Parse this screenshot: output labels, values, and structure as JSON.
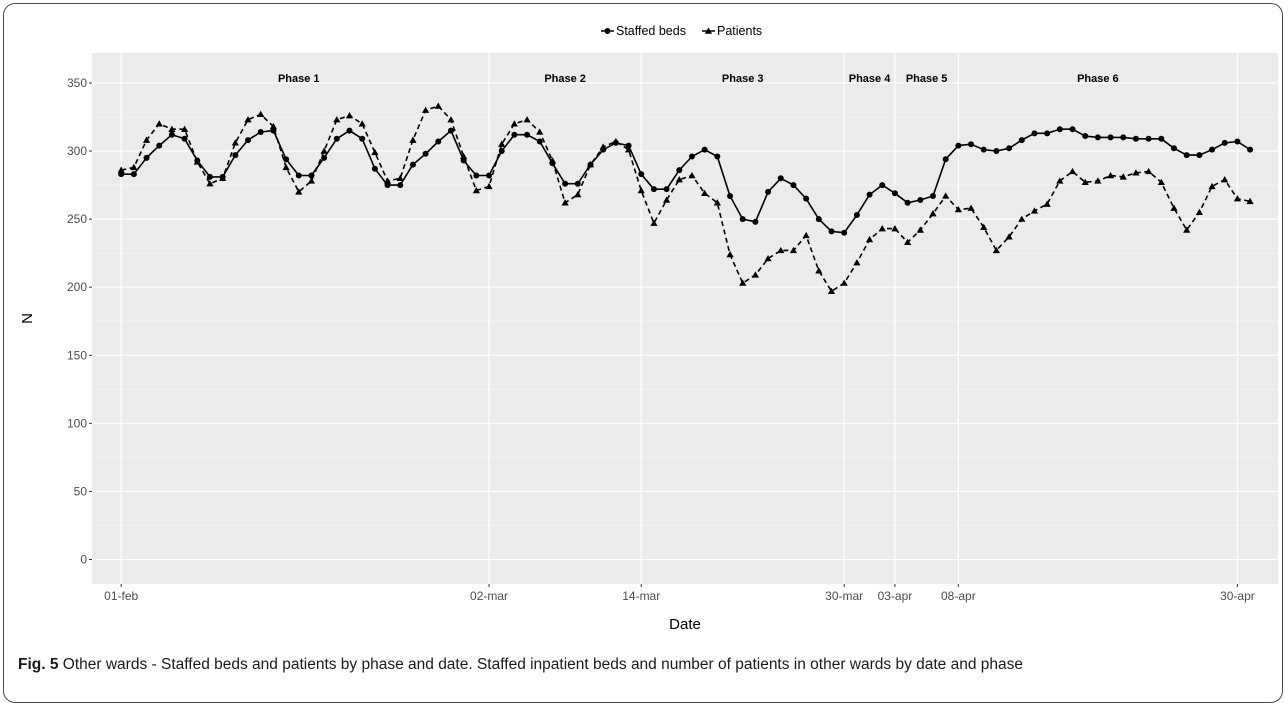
{
  "figure": {
    "caption_label": "Fig. 5",
    "caption_text": " Other wards - Staffed beds and patients by phase and date. Staffed inpatient beds and number of patients in other wards by date and phase"
  },
  "chart_data": {
    "type": "line",
    "title": "",
    "xlabel": "Date",
    "ylabel": "N",
    "ylim": [
      -18,
      372
    ],
    "xlim": [
      -2.3,
      91.2
    ],
    "grid": true,
    "legend_placement": "top",
    "x_ticks": [
      {
        "day": 0,
        "label": "01-feb"
      },
      {
        "day": 29,
        "label": "02-mar"
      },
      {
        "day": 41,
        "label": "14-mar"
      },
      {
        "day": 57,
        "label": "30-mar"
      },
      {
        "day": 61,
        "label": "03-apr"
      },
      {
        "day": 66,
        "label": "08-apr"
      },
      {
        "day": 88,
        "label": "30-apr"
      }
    ],
    "y_ticks": [
      0,
      50,
      100,
      150,
      200,
      250,
      300,
      350
    ],
    "phases": [
      {
        "label": "Phase 1",
        "center_day": 14
      },
      {
        "label": "Phase 2",
        "center_day": 35
      },
      {
        "label": "Phase 3",
        "center_day": 49
      },
      {
        "label": "Phase 4",
        "center_day": 59
      },
      {
        "label": "Phase 5",
        "center_day": 63.5
      },
      {
        "label": "Phase 6",
        "center_day": 77
      }
    ],
    "x_start_date": "01-feb",
    "series": [
      {
        "name": "Staffed beds",
        "marker": "circle",
        "dash": "solid",
        "color": "#000000",
        "values": [
          283,
          283,
          295,
          304,
          312,
          309,
          293,
          281,
          281,
          297,
          308,
          314,
          315,
          294,
          282,
          282,
          295,
          309,
          315,
          309,
          287,
          275,
          275,
          290,
          298,
          307,
          315,
          293,
          282,
          282,
          300,
          312,
          312,
          307,
          291,
          276,
          276,
          290,
          301,
          306,
          304,
          283,
          272,
          272,
          286,
          296,
          301,
          296,
          267,
          250,
          248,
          270,
          280,
          275,
          265,
          250,
          241,
          240,
          253,
          268,
          275,
          269,
          262,
          264,
          267,
          294,
          304,
          305,
          301,
          300,
          302,
          308,
          313,
          313,
          316,
          316,
          311,
          310,
          310,
          310,
          309,
          309,
          309,
          302,
          297,
          297,
          301,
          306,
          307,
          301
        ]
      },
      {
        "name": "Patients",
        "marker": "triangle",
        "dash": "dashed",
        "color": "#000000",
        "values": [
          286,
          288,
          308,
          320,
          316,
          316,
          292,
          276,
          280,
          306,
          323,
          327,
          318,
          288,
          270,
          278,
          300,
          323,
          326,
          320,
          299,
          278,
          280,
          308,
          330,
          333,
          323,
          296,
          271,
          274,
          305,
          320,
          323,
          314,
          293,
          262,
          268,
          290,
          303,
          307,
          301,
          271,
          247,
          264,
          279,
          282,
          269,
          262,
          224,
          203,
          209,
          221,
          227,
          227,
          238,
          212,
          197,
          203,
          218,
          235,
          243,
          243,
          233,
          242,
          254,
          267,
          257,
          258,
          244,
          227,
          237,
          250,
          256,
          261,
          278,
          285,
          277,
          278,
          282,
          281,
          284,
          285,
          277,
          258,
          242,
          255,
          274,
          279,
          265,
          263
        ]
      }
    ]
  }
}
